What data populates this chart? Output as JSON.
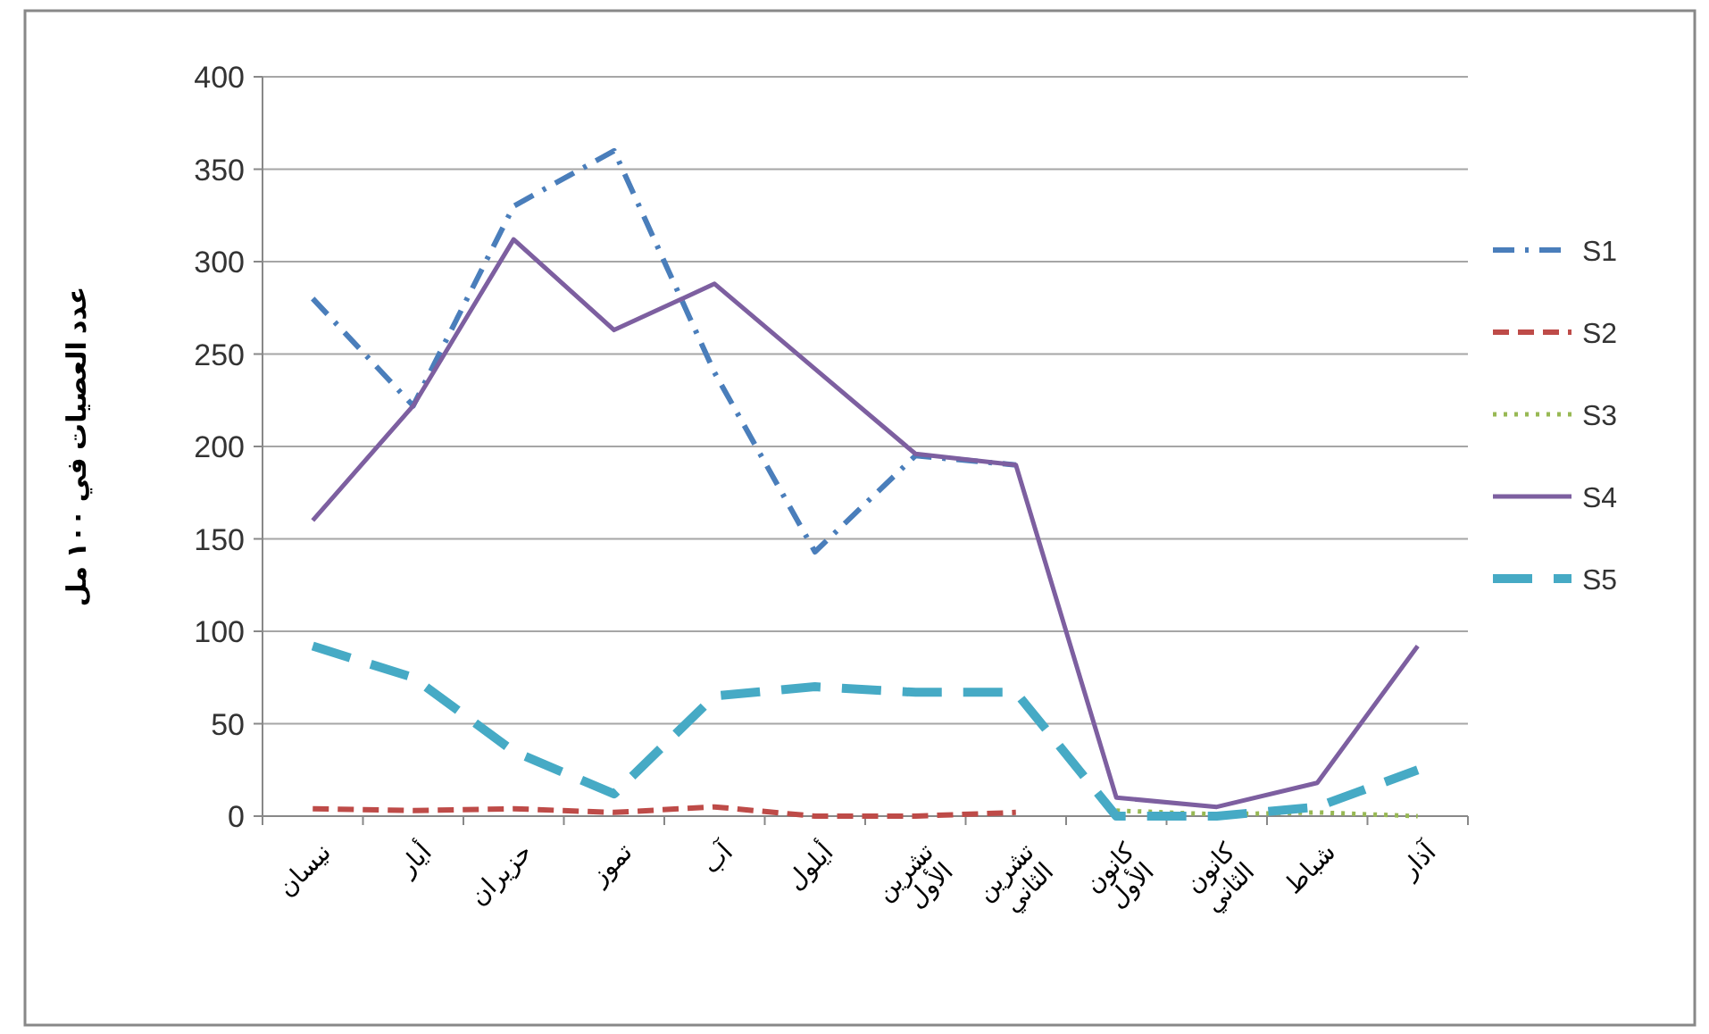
{
  "chart_data": {
    "type": "line",
    "ylabel": "عدد العصيات في ١٠٠ مل",
    "categories": [
      "نيسان",
      "أيار",
      "حزيران",
      "تموز",
      "آب",
      "أيلول",
      "تشرين الأول",
      "تشرين الثاني",
      "كانون الأول",
      "كانون الثاني",
      "شباط",
      "آذار"
    ],
    "series": [
      {
        "name": "S1",
        "color": "#4a7ebb",
        "line_style": "dash-dot",
        "values": [
          280,
          222,
          330,
          360,
          240,
          143,
          195,
          190,
          null,
          null,
          null,
          null
        ]
      },
      {
        "name": "S2",
        "color": "#be4b48",
        "line_style": "dashed",
        "values": [
          4,
          3,
          4,
          2,
          5,
          0,
          0,
          2,
          null,
          null,
          null,
          null
        ]
      },
      {
        "name": "S3",
        "color": "#98b954",
        "line_style": "dotted",
        "values": [
          null,
          null,
          null,
          null,
          null,
          null,
          null,
          null,
          3,
          1,
          2,
          0
        ]
      },
      {
        "name": "S4",
        "color": "#7d5fa0",
        "line_style": "solid",
        "values": [
          160,
          222,
          312,
          263,
          288,
          242,
          196,
          190,
          10,
          5,
          18,
          92
        ]
      },
      {
        "name": "S5",
        "color": "#46aac5",
        "line_style": "long-dash",
        "values": [
          92,
          75,
          35,
          12,
          65,
          70,
          67,
          67,
          0,
          0,
          5,
          25
        ]
      }
    ],
    "ylim": [
      0,
      400
    ],
    "yticks": [
      0,
      50,
      100,
      150,
      200,
      250,
      300,
      350,
      400
    ],
    "grid": "y",
    "legend": "right"
  }
}
